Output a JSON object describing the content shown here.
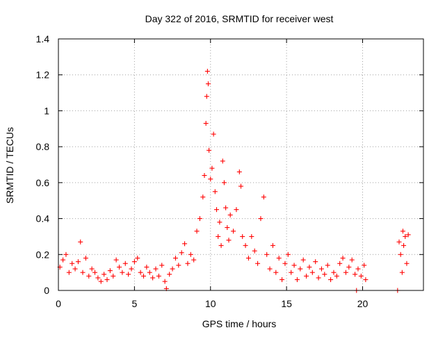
{
  "chart_data": {
    "type": "scatter",
    "title": "Day 322 of 2016, SRMTID for receiver west",
    "xlabel": "GPS time / hours",
    "ylabel": "SRMTID / TECUs",
    "xlim": [
      0,
      24
    ],
    "ylim": [
      0,
      1.4
    ],
    "x_ticks": [
      "0",
      "5",
      "10",
      "15",
      "20"
    ],
    "y_ticks": [
      "0",
      "0.2",
      "0.4",
      "0.6",
      "0.8",
      "1",
      "1.2",
      "1.4"
    ],
    "grid": true,
    "marker": "+",
    "color": "#ff0000",
    "series": [
      {
        "name": "west",
        "points": [
          [
            0.1,
            0.13
          ],
          [
            0.3,
            0.17
          ],
          [
            0.5,
            0.2
          ],
          [
            0.7,
            0.1
          ],
          [
            0.9,
            0.15
          ],
          [
            1.1,
            0.12
          ],
          [
            1.3,
            0.16
          ],
          [
            1.45,
            0.27
          ],
          [
            1.6,
            0.1
          ],
          [
            1.8,
            0.18
          ],
          [
            2.0,
            0.08
          ],
          [
            2.2,
            0.12
          ],
          [
            2.4,
            0.1
          ],
          [
            2.6,
            0.07
          ],
          [
            2.8,
            0.05
          ],
          [
            3.0,
            0.09
          ],
          [
            3.2,
            0.06
          ],
          [
            3.4,
            0.11
          ],
          [
            3.6,
            0.08
          ],
          [
            3.8,
            0.17
          ],
          [
            4.0,
            0.13
          ],
          [
            4.2,
            0.1
          ],
          [
            4.4,
            0.15
          ],
          [
            4.6,
            0.09
          ],
          [
            4.8,
            0.12
          ],
          [
            5.0,
            0.16
          ],
          [
            5.2,
            0.18
          ],
          [
            5.4,
            0.1
          ],
          [
            5.6,
            0.08
          ],
          [
            5.8,
            0.13
          ],
          [
            6.0,
            0.1
          ],
          [
            6.2,
            0.07
          ],
          [
            6.4,
            0.12
          ],
          [
            6.6,
            0.08
          ],
          [
            6.8,
            0.14
          ],
          [
            7.0,
            0.05
          ],
          [
            7.1,
            0.01
          ],
          [
            7.3,
            0.09
          ],
          [
            7.5,
            0.12
          ],
          [
            7.7,
            0.18
          ],
          [
            7.9,
            0.14
          ],
          [
            8.1,
            0.21
          ],
          [
            8.3,
            0.26
          ],
          [
            8.5,
            0.15
          ],
          [
            8.7,
            0.2
          ],
          [
            8.9,
            0.17
          ],
          [
            9.1,
            0.33
          ],
          [
            9.3,
            0.4
          ],
          [
            9.5,
            0.52
          ],
          [
            9.6,
            0.64
          ],
          [
            9.7,
            0.93
          ],
          [
            9.75,
            1.08
          ],
          [
            9.8,
            1.22
          ],
          [
            9.85,
            1.15
          ],
          [
            9.9,
            0.78
          ],
          [
            10.0,
            0.62
          ],
          [
            10.1,
            0.68
          ],
          [
            10.2,
            0.87
          ],
          [
            10.3,
            0.55
          ],
          [
            10.4,
            0.45
          ],
          [
            10.5,
            0.3
          ],
          [
            10.6,
            0.38
          ],
          [
            10.7,
            0.25
          ],
          [
            10.8,
            0.72
          ],
          [
            10.9,
            0.6
          ],
          [
            11.0,
            0.46
          ],
          [
            11.1,
            0.35
          ],
          [
            11.2,
            0.28
          ],
          [
            11.3,
            0.42
          ],
          [
            11.5,
            0.33
          ],
          [
            11.7,
            0.45
          ],
          [
            11.9,
            0.66
          ],
          [
            12.0,
            0.58
          ],
          [
            12.1,
            0.3
          ],
          [
            12.3,
            0.25
          ],
          [
            12.5,
            0.18
          ],
          [
            12.7,
            0.3
          ],
          [
            12.9,
            0.22
          ],
          [
            13.1,
            0.15
          ],
          [
            13.3,
            0.4
          ],
          [
            13.5,
            0.52
          ],
          [
            13.7,
            0.2
          ],
          [
            13.9,
            0.12
          ],
          [
            14.1,
            0.25
          ],
          [
            14.3,
            0.1
          ],
          [
            14.5,
            0.18
          ],
          [
            14.7,
            0.06
          ],
          [
            14.9,
            0.15
          ],
          [
            15.1,
            0.2
          ],
          [
            15.3,
            0.1
          ],
          [
            15.5,
            0.14
          ],
          [
            15.7,
            0.06
          ],
          [
            15.9,
            0.12
          ],
          [
            16.1,
            0.17
          ],
          [
            16.3,
            0.08
          ],
          [
            16.5,
            0.13
          ],
          [
            16.7,
            0.1
          ],
          [
            16.9,
            0.16
          ],
          [
            17.1,
            0.07
          ],
          [
            17.3,
            0.12
          ],
          [
            17.5,
            0.09
          ],
          [
            17.7,
            0.14
          ],
          [
            17.9,
            0.06
          ],
          [
            18.1,
            0.1
          ],
          [
            18.3,
            0.08
          ],
          [
            18.5,
            0.15
          ],
          [
            18.7,
            0.18
          ],
          [
            18.9,
            0.1
          ],
          [
            19.1,
            0.13
          ],
          [
            19.3,
            0.17
          ],
          [
            19.5,
            0.09
          ],
          [
            19.6,
            0.0
          ],
          [
            19.7,
            0.12
          ],
          [
            19.9,
            0.08
          ],
          [
            20.1,
            0.14
          ],
          [
            20.2,
            0.06
          ],
          [
            22.3,
            0.0
          ],
          [
            22.4,
            0.27
          ],
          [
            22.5,
            0.2
          ],
          [
            22.6,
            0.1
          ],
          [
            22.65,
            0.33
          ],
          [
            22.7,
            0.25
          ],
          [
            22.8,
            0.3
          ],
          [
            22.9,
            0.15
          ],
          [
            23.0,
            0.31
          ]
        ]
      }
    ]
  }
}
